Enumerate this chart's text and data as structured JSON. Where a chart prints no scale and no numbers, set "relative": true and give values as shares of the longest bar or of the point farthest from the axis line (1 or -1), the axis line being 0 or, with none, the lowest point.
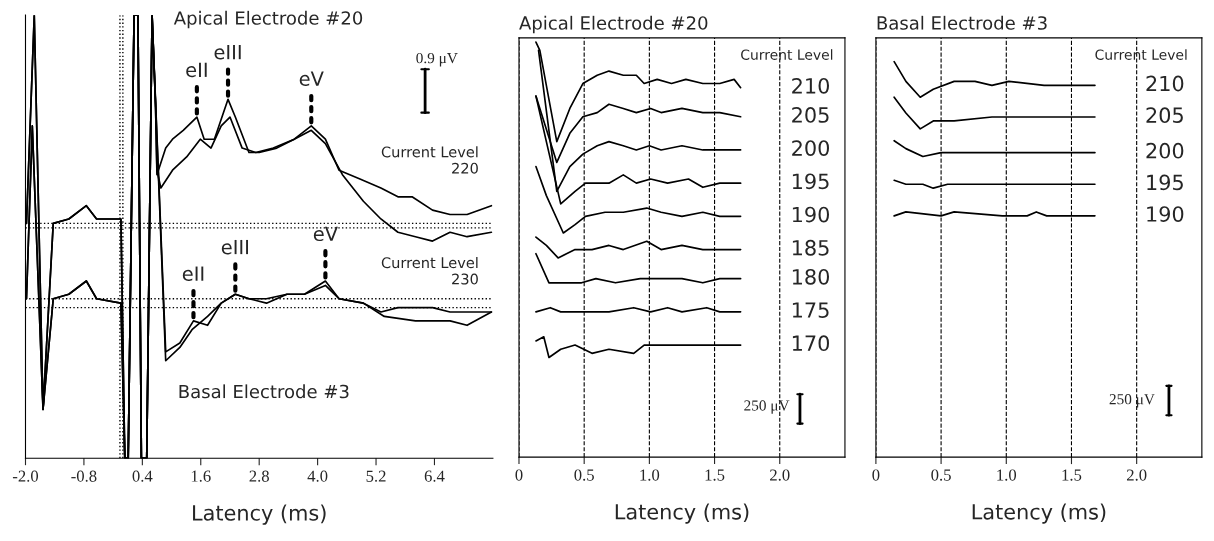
{
  "chart_data": [
    {
      "type": "line",
      "relative": true,
      "xlabel": "Latency (ms)",
      "xlim": [
        -2.0,
        7.6
      ],
      "xticks": [
        {
          "value": -2.0,
          "label": "-2.0"
        },
        {
          "value": -0.8,
          "label": "-0.8"
        },
        {
          "value": 0.4,
          "label": "0.4"
        },
        {
          "value": 1.6,
          "label": "1.6"
        },
        {
          "value": 2.8,
          "label": "2.8"
        },
        {
          "value": 4.0,
          "label": "4.0"
        },
        {
          "value": 5.2,
          "label": "5.2"
        },
        {
          "value": 6.4,
          "label": "6.4"
        }
      ],
      "tick_labels": "x",
      "series": [
        {
          "color": "#000000",
          "x": [
            -1.98,
            -1.82,
            -1.64,
            -1.43,
            -1.11,
            -0.75,
            -0.54,
            -0.11,
            -0.04,
            0.04,
            0.11,
            0.23,
            0.31,
            0.38,
            0.49,
            0.6,
            0.67,
            0.7,
            0.88,
            1.02,
            1.24,
            1.52,
            1.67,
            1.88,
            2.16,
            2.31,
            2.59,
            2.8,
            3.16,
            3.52,
            3.87,
            4.16,
            4.44,
            4.87,
            5.3,
            5.65,
            5.94,
            6.36,
            6.72,
            7.07,
            7.57
          ],
          "values": [
            0.53,
            1.0,
            0.11,
            0.53,
            0.54,
            0.57,
            0.54,
            0.54,
            0.54,
            0,
            0,
            1.0,
            1.0,
            0,
            0,
            1.0,
            0.8,
            0.64,
            0.7,
            0.72,
            0.74,
            0.77,
            0.72,
            0.72,
            0.81,
            0.77,
            0.69,
            0.69,
            0.7,
            0.72,
            0.75,
            0.72,
            0.65,
            0.63,
            0.61,
            0.59,
            0.59,
            0.56,
            0.55,
            0.55,
            0.57
          ]
        },
        {
          "color": "#000000",
          "x": [
            -1.98,
            -1.82,
            -1.64,
            -1.43,
            -1.11,
            -0.75,
            -0.54,
            -0.11,
            -0.04,
            0.04,
            0.11,
            0.23,
            0.31,
            0.38,
            0.49,
            0.6,
            0.67,
            0.7,
            0.78,
            1.02,
            1.31,
            1.59,
            1.81,
            2.02,
            2.2,
            2.45,
            2.73,
            3.09,
            3.52,
            3.87,
            4.16,
            4.51,
            4.94,
            5.3,
            5.65,
            6.01,
            6.36,
            6.72,
            7.07,
            7.57
          ],
          "values": [
            0.53,
            1.0,
            0.11,
            0.53,
            0.54,
            0.57,
            0.54,
            0.54,
            0.54,
            0,
            0,
            1.0,
            1.0,
            0,
            0,
            1.0,
            0.8,
            0.65,
            0.61,
            0.65,
            0.68,
            0.72,
            0.7,
            0.75,
            0.77,
            0.7,
            0.69,
            0.7,
            0.72,
            0.74,
            0.71,
            0.64,
            0.58,
            0.54,
            0.51,
            0.5,
            0.49,
            0.51,
            0.5,
            0.51
          ]
        },
        {
          "color": "#000000",
          "x": [
            -1.98,
            -1.86,
            -1.64,
            -1.43,
            -1.11,
            -0.75,
            -0.54,
            -0.04,
            0.04,
            0.11,
            0.23,
            0.31,
            0.38,
            0.49,
            0.6,
            0.88,
            1.17,
            1.45,
            1.74,
            2.02,
            2.31,
            2.59,
            2.95,
            3.37,
            3.73,
            4.16,
            4.44,
            4.94,
            5.3,
            5.65,
            6.36,
            6.72,
            7.57
          ],
          "values": [
            0.36,
            0.75,
            0.11,
            0.36,
            0.37,
            0.4,
            0.36,
            0.35,
            0,
            0,
            1.0,
            1.0,
            0,
            0,
            1.0,
            0.24,
            0.26,
            0.31,
            0.3,
            0.35,
            0.37,
            0.36,
            0.35,
            0.37,
            0.37,
            0.4,
            0.36,
            0.35,
            0.33,
            0.34,
            0.34,
            0.33,
            0.33
          ]
        },
        {
          "color": "#000000",
          "x": [
            -1.98,
            -1.86,
            -1.64,
            -1.43,
            -1.11,
            -0.75,
            -0.54,
            -0.04,
            0.04,
            0.11,
            0.23,
            0.31,
            0.38,
            0.49,
            0.6,
            0.88,
            1.17,
            1.42,
            1.74,
            2.02,
            2.31,
            2.59,
            2.95,
            3.37,
            3.73,
            4.16,
            4.44,
            4.94,
            5.37,
            6.01,
            6.72,
            7.07,
            7.57
          ],
          "values": [
            0.36,
            0.75,
            0.11,
            0.36,
            0.37,
            0.4,
            0.36,
            0.35,
            0,
            0,
            1.0,
            1.0,
            0,
            0,
            1.0,
            0.22,
            0.25,
            0.29,
            0.32,
            0.35,
            0.37,
            0.36,
            0.36,
            0.37,
            0.37,
            0.39,
            0.36,
            0.35,
            0.32,
            0.31,
            0.31,
            0.3,
            0.33
          ]
        }
      ],
      "ref_lines": [
        {
          "axis": "y",
          "value": 0.53,
          "line_style": "dotted"
        },
        {
          "axis": "y",
          "value": 0.52,
          "line_style": "dotted"
        },
        {
          "axis": "y",
          "value": 0.36,
          "line_style": "dotted"
        },
        {
          "axis": "y",
          "value": 0.34,
          "line_style": "dotted"
        },
        {
          "axis": "x",
          "value": -0.06,
          "line_style": "dotted"
        },
        {
          "axis": "x",
          "value": 0.0,
          "line_style": "dotted"
        }
      ],
      "annotations": [
        "Apical Electrode #20",
        "Basal Electrode #3",
        "0.9 μV",
        "Current Level\n220",
        "Current Level\n230",
        {
          "text": "eII",
          "x": 1.52,
          "y": 0.77
        },
        {
          "text": "eIII",
          "x": 2.16,
          "y": 0.81
        },
        {
          "text": "eV",
          "x": 3.87,
          "y": 0.75
        },
        {
          "text": "eII",
          "x": 1.45,
          "y": 0.31
        },
        {
          "text": "eIII",
          "x": 2.31,
          "y": 0.37
        },
        {
          "text": "eV",
          "x": 4.16,
          "y": 0.4
        }
      ]
    },
    {
      "type": "line",
      "relative": true,
      "title": "Apical Electrode #20",
      "xlabel": "Latency (ms)",
      "xlim": [
        0,
        2.5
      ],
      "xticks": [
        0,
        0.5,
        {
          "value": 1.0,
          "label": "1.0"
        },
        1.5,
        {
          "value": 2.0,
          "label": "2.0"
        }
      ],
      "tick_labels": "x",
      "grid": "x",
      "series": [
        {
          "name": "210",
          "color": "#000000",
          "x": [
            0.13,
            0.16,
            0.29,
            0.39,
            0.49,
            0.6,
            0.69,
            0.8,
            0.9,
            0.96,
            1.06,
            1.17,
            1.28,
            1.41,
            1.54,
            1.65,
            1.7
          ],
          "values": [
            1.0,
            0.98,
            0.76,
            0.84,
            0.9,
            0.92,
            0.93,
            0.92,
            0.92,
            0.9,
            0.91,
            0.9,
            0.91,
            0.9,
            0.9,
            0.91,
            0.89
          ]
        },
        {
          "name": "205",
          "color": "#000000",
          "x": [
            0.13,
            0.21,
            0.29,
            0.39,
            0.49,
            0.6,
            0.69,
            0.8,
            0.9,
            1.01,
            1.09,
            1.25,
            1.41,
            1.54,
            1.7
          ],
          "values": [
            0.87,
            0.79,
            0.71,
            0.78,
            0.82,
            0.83,
            0.85,
            0.84,
            0.83,
            0.84,
            0.83,
            0.84,
            0.83,
            0.83,
            0.82
          ]
        },
        {
          "name": "200",
          "color": "#000000",
          "x": [
            0.15,
            0.29,
            0.39,
            0.49,
            0.6,
            0.69,
            0.8,
            0.9,
            1.0,
            1.09,
            1.25,
            1.41,
            1.54,
            1.7
          ],
          "values": [
            0.98,
            0.64,
            0.7,
            0.73,
            0.75,
            0.76,
            0.75,
            0.74,
            0.75,
            0.74,
            0.75,
            0.74,
            0.74,
            0.74
          ]
        },
        {
          "name": "195",
          "color": "#000000",
          "x": [
            0.13,
            0.21,
            0.32,
            0.43,
            0.51,
            0.69,
            0.8,
            0.9,
            1.01,
            1.14,
            1.3,
            1.41,
            1.54,
            1.7
          ],
          "values": [
            0.87,
            0.76,
            0.61,
            0.64,
            0.66,
            0.66,
            0.68,
            0.66,
            0.67,
            0.66,
            0.67,
            0.65,
            0.66,
            0.66
          ]
        },
        {
          "name": "190",
          "color": "#000000",
          "x": [
            0.13,
            0.21,
            0.34,
            0.43,
            0.51,
            0.66,
            0.8,
            0.98,
            1.09,
            1.25,
            1.41,
            1.54,
            1.7
          ],
          "values": [
            0.7,
            0.63,
            0.54,
            0.56,
            0.58,
            0.59,
            0.59,
            0.6,
            0.59,
            0.58,
            0.59,
            0.58,
            0.58
          ]
        },
        {
          "name": "185",
          "color": "#000000",
          "x": [
            0.13,
            0.21,
            0.3,
            0.43,
            0.56,
            0.69,
            0.8,
            0.98,
            1.09,
            1.25,
            1.41,
            1.54,
            1.7
          ],
          "values": [
            0.53,
            0.51,
            0.48,
            0.5,
            0.5,
            0.51,
            0.5,
            0.52,
            0.5,
            0.51,
            0.5,
            0.5,
            0.5
          ]
        },
        {
          "name": "180",
          "color": "#000000",
          "x": [
            0.13,
            0.23,
            0.36,
            0.48,
            0.59,
            0.74,
            0.93,
            1.09,
            1.25,
            1.41,
            1.54,
            1.7
          ],
          "values": [
            0.49,
            0.42,
            0.42,
            0.42,
            0.43,
            0.42,
            0.43,
            0.43,
            0.43,
            0.42,
            0.43,
            0.43
          ]
        },
        {
          "name": "175",
          "color": "#000000",
          "x": [
            0.13,
            0.24,
            0.32,
            0.43,
            0.51,
            0.69,
            0.88,
            1.01,
            1.14,
            1.25,
            1.44,
            1.54,
            1.7
          ],
          "values": [
            0.35,
            0.36,
            0.35,
            0.35,
            0.35,
            0.35,
            0.36,
            0.35,
            0.36,
            0.35,
            0.36,
            0.35,
            0.35
          ]
        },
        {
          "name": "170",
          "color": "#000000",
          "x": [
            0.13,
            0.19,
            0.23,
            0.32,
            0.43,
            0.56,
            0.69,
            0.88,
            0.96,
            1.14,
            1.41,
            1.7
          ],
          "values": [
            0.28,
            0.29,
            0.24,
            0.26,
            0.27,
            0.25,
            0.26,
            0.25,
            0.27,
            0.27,
            0.27,
            0.27
          ]
        }
      ],
      "annotations": [
        "Current Level",
        "250 μV"
      ]
    },
    {
      "type": "line",
      "relative": true,
      "title": "Basal Electrode #3",
      "xlabel": "Latency (ms)",
      "xlim": [
        0,
        2.5
      ],
      "xticks": [
        0,
        0.5,
        {
          "value": 1.0,
          "label": "1.0"
        },
        1.5,
        {
          "value": 2.0,
          "label": "2.0"
        }
      ],
      "tick_labels": "x",
      "grid": "x",
      "series": [
        {
          "name": "210",
          "color": "#000000",
          "x": [
            0.14,
            0.23,
            0.34,
            0.44,
            0.6,
            0.76,
            0.89,
            1.02,
            1.29,
            1.5,
            1.68
          ],
          "values": [
            1.0,
            0.95,
            0.91,
            0.93,
            0.95,
            0.95,
            0.94,
            0.95,
            0.94,
            0.94,
            0.94
          ]
        },
        {
          "name": "205",
          "color": "#000000",
          "x": [
            0.14,
            0.23,
            0.34,
            0.44,
            0.6,
            0.89,
            1.16,
            1.42,
            1.68
          ],
          "values": [
            0.91,
            0.87,
            0.83,
            0.85,
            0.85,
            0.86,
            0.86,
            0.86,
            0.86
          ]
        },
        {
          "name": "200",
          "color": "#000000",
          "x": [
            0.14,
            0.23,
            0.36,
            0.5,
            0.6,
            0.89,
            1.16,
            1.42,
            1.68
          ],
          "values": [
            0.8,
            0.78,
            0.76,
            0.77,
            0.77,
            0.77,
            0.77,
            0.77,
            0.77
          ]
        },
        {
          "name": "195",
          "color": "#000000",
          "x": [
            0.14,
            0.23,
            0.36,
            0.44,
            0.55,
            0.89,
            1.16,
            1.42,
            1.68
          ],
          "values": [
            0.7,
            0.69,
            0.69,
            0.68,
            0.69,
            0.69,
            0.69,
            0.69,
            0.69
          ]
        },
        {
          "name": "190",
          "color": "#000000",
          "x": [
            0.14,
            0.23,
            0.5,
            0.6,
            0.97,
            1.16,
            1.23,
            1.31,
            1.42,
            1.68
          ],
          "values": [
            0.61,
            0.62,
            0.61,
            0.62,
            0.61,
            0.61,
            0.62,
            0.61,
            0.61,
            0.61
          ]
        }
      ],
      "annotations": [
        "Current Level",
        "250 μV"
      ]
    }
  ]
}
